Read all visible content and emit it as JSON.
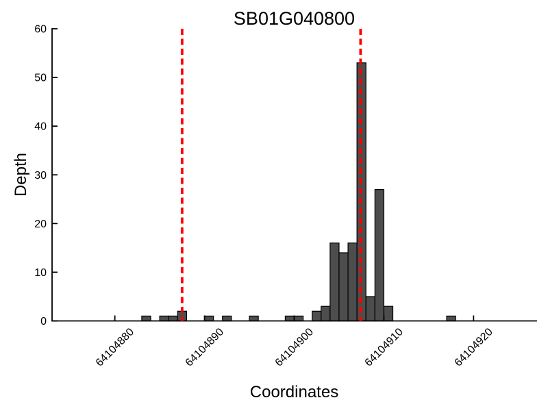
{
  "chart_data": {
    "type": "bar",
    "subtype": "histogram",
    "title": "SB01G040800",
    "xlabel": "Coordinates",
    "ylabel": "Depth",
    "xlim": [
      64104873,
      64104927
    ],
    "ylim": [
      0,
      60
    ],
    "xticks": [
      64104880,
      64104890,
      64104900,
      64104910,
      64104920
    ],
    "yticks": [
      0,
      10,
      20,
      30,
      40,
      50,
      60
    ],
    "bin_width": 1,
    "bars": [
      {
        "x": 64104883,
        "count": 1
      },
      {
        "x": 64104885,
        "count": 1
      },
      {
        "x": 64104886,
        "count": 1
      },
      {
        "x": 64104887,
        "count": 2
      },
      {
        "x": 64104890,
        "count": 1
      },
      {
        "x": 64104892,
        "count": 1
      },
      {
        "x": 64104895,
        "count": 1
      },
      {
        "x": 64104899,
        "count": 1
      },
      {
        "x": 64104900,
        "count": 1
      },
      {
        "x": 64104902,
        "count": 2
      },
      {
        "x": 64104903,
        "count": 3
      },
      {
        "x": 64104904,
        "count": 16
      },
      {
        "x": 64104905,
        "count": 14
      },
      {
        "x": 64104906,
        "count": 16
      },
      {
        "x": 64104907,
        "count": 53
      },
      {
        "x": 64104908,
        "count": 5
      },
      {
        "x": 64104909,
        "count": 27
      },
      {
        "x": 64104910,
        "count": 3
      },
      {
        "x": 64104917,
        "count": 1
      }
    ],
    "vlines": [
      {
        "x": 64104887.5,
        "color": "#ff0000",
        "style": "dashed"
      },
      {
        "x": 64104907.4,
        "color": "#ff0000",
        "style": "dashed"
      }
    ],
    "colors": {
      "bar_fill": "#4d4d4d",
      "bar_edge": "#000000",
      "axis": "#000000",
      "background": "#ffffff"
    },
    "grid": false,
    "legend": "none"
  }
}
